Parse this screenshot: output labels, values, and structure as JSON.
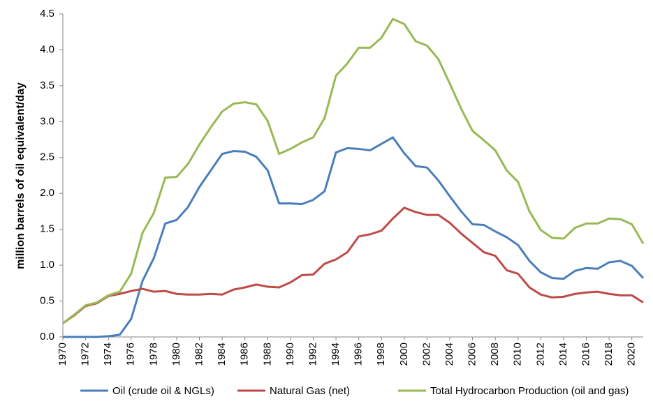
{
  "chart_data": {
    "type": "line",
    "y_label": "million barrels of oil equivalent/day",
    "x": [
      1970,
      1971,
      1972,
      1973,
      1974,
      1975,
      1976,
      1977,
      1978,
      1979,
      1980,
      1981,
      1982,
      1983,
      1984,
      1985,
      1986,
      1987,
      1988,
      1989,
      1990,
      1991,
      1992,
      1993,
      1994,
      1995,
      1996,
      1997,
      1998,
      1999,
      2000,
      2001,
      2002,
      2003,
      2004,
      2005,
      2006,
      2007,
      2008,
      2009,
      2010,
      2011,
      2012,
      2013,
      2014,
      2015,
      2016,
      2017,
      2018,
      2019,
      2020,
      2021
    ],
    "series": [
      {
        "name": "Oil (crude oil & NGLs)",
        "color": "#4a7ebb",
        "values": [
          0,
          0,
          0,
          0,
          0.01,
          0.03,
          0.25,
          0.78,
          1.1,
          1.58,
          1.63,
          1.81,
          2.09,
          2.32,
          2.55,
          2.59,
          2.58,
          2.51,
          2.32,
          1.86,
          1.86,
          1.85,
          1.91,
          2.03,
          2.57,
          2.63,
          2.62,
          2.6,
          2.69,
          2.78,
          2.56,
          2.38,
          2.36,
          2.18,
          1.96,
          1.75,
          1.57,
          1.56,
          1.47,
          1.39,
          1.28,
          1.06,
          0.9,
          0.82,
          0.81,
          0.92,
          0.96,
          0.95,
          1.04,
          1.06,
          0.99,
          0.82
        ]
      },
      {
        "name": "Natural Gas (net)",
        "color": "#be4b48",
        "values": [
          0.19,
          0.3,
          0.43,
          0.47,
          0.57,
          0.6,
          0.64,
          0.67,
          0.63,
          0.64,
          0.6,
          0.59,
          0.59,
          0.6,
          0.59,
          0.66,
          0.69,
          0.73,
          0.7,
          0.69,
          0.76,
          0.86,
          0.87,
          1.02,
          1.08,
          1.18,
          1.4,
          1.43,
          1.48,
          1.65,
          1.8,
          1.74,
          1.7,
          1.7,
          1.59,
          1.44,
          1.31,
          1.18,
          1.13,
          0.93,
          0.88,
          0.69,
          0.59,
          0.55,
          0.56,
          0.6,
          0.62,
          0.63,
          0.6,
          0.58,
          0.58,
          0.48
        ]
      },
      {
        "name": "Total Hydrocarbon Production (oil and gas)",
        "color": "#98b954",
        "values": [
          0.19,
          0.31,
          0.44,
          0.48,
          0.58,
          0.63,
          0.88,
          1.45,
          1.73,
          2.22,
          2.23,
          2.41,
          2.68,
          2.92,
          3.14,
          3.25,
          3.27,
          3.24,
          3.01,
          2.55,
          2.62,
          2.71,
          2.78,
          3.05,
          3.64,
          3.81,
          4.03,
          4.03,
          4.17,
          4.43,
          4.36,
          4.12,
          4.06,
          3.87,
          3.53,
          3.18,
          2.87,
          2.74,
          2.6,
          2.32,
          2.16,
          1.75,
          1.49,
          1.38,
          1.37,
          1.52,
          1.58,
          1.58,
          1.65,
          1.64,
          1.57,
          1.3
        ]
      }
    ],
    "xlim": [
      1970,
      2021
    ],
    "xticks": [
      1970,
      1972,
      1974,
      1976,
      1978,
      1980,
      1982,
      1984,
      1986,
      1988,
      1990,
      1992,
      1994,
      1996,
      1998,
      2000,
      2002,
      2004,
      2006,
      2008,
      2010,
      2012,
      2014,
      2016,
      2018,
      2020
    ],
    "ylim": [
      0,
      4.5
    ],
    "yticks": [
      {
        "value": 0,
        "label": "0.0"
      },
      0.5,
      {
        "value": 1,
        "label": "1.0"
      },
      1.5,
      {
        "value": 2,
        "label": "2.0"
      },
      2.5,
      {
        "value": 3,
        "label": "3.0"
      },
      3.5,
      {
        "value": 4,
        "label": "4.0"
      },
      4.5
    ],
    "grid": false,
    "legend": "bottom"
  }
}
